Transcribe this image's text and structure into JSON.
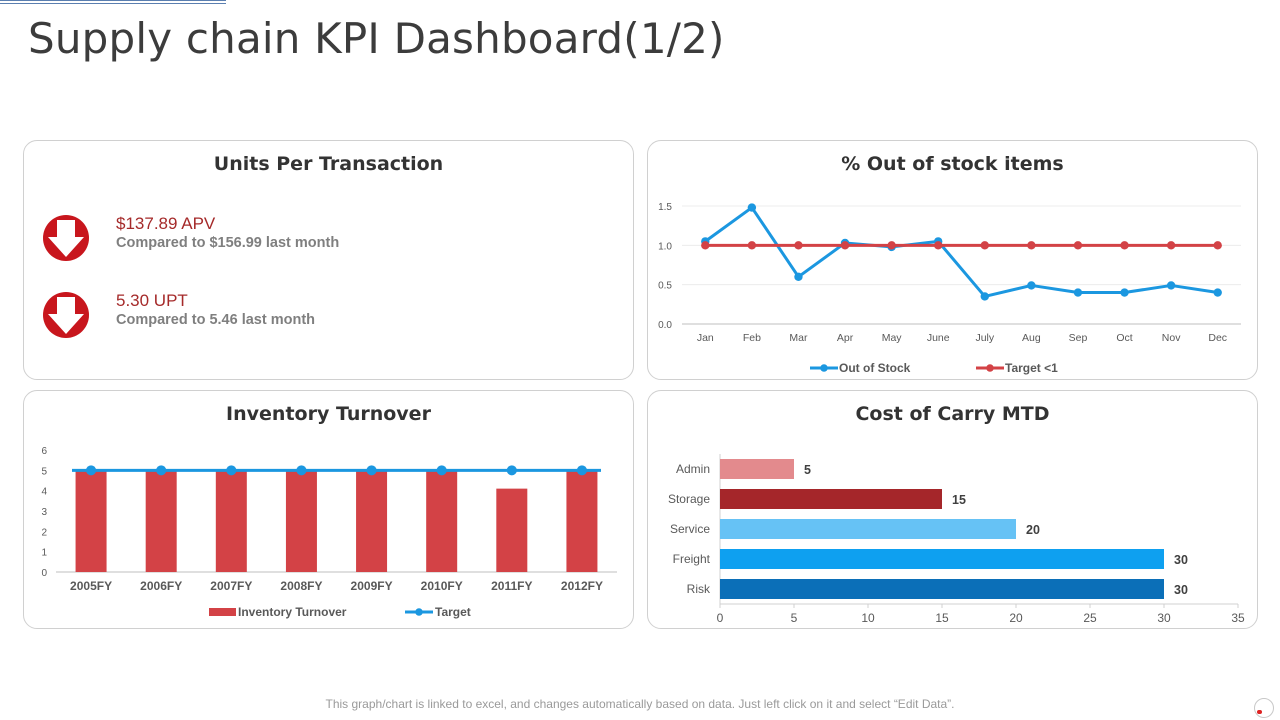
{
  "page": {
    "title": "Supply chain KPI Dashboard(1/2)",
    "footer_note": "This graph/chart is linked to excel, and changes automatically based on data. Just left click on it and select “Edit Data”."
  },
  "units_per_transaction": {
    "title": "Units Per Transaction",
    "kpis": [
      {
        "value": "$137.89 APV",
        "compare": "Compared to $156.99 last month",
        "icon": "down-arrow-icon"
      },
      {
        "value": "5.30 UPT",
        "compare": "Compared to 5.46 last month",
        "icon": "down-arrow-icon"
      }
    ]
  },
  "colors": {
    "red": "#d34246",
    "dark_red": "#a5262a",
    "pink": "#e38a8d",
    "blue": "#1b97e0",
    "light_blue": "#66c2f5",
    "mid_blue": "#0ea0f0",
    "deep_blue": "#0b6fb8",
    "grid": "#ececec",
    "axis_text": "#595959"
  },
  "chart_data": [
    {
      "id": "oos",
      "type": "line",
      "title": "% Out of stock items",
      "categories": [
        "Jan",
        "Feb",
        "Mar",
        "Apr",
        "May",
        "June",
        "July",
        "Aug",
        "Sep",
        "Oct",
        "Nov",
        "Dec"
      ],
      "series": [
        {
          "name": "Out of Stock",
          "values": [
            1.05,
            1.48,
            0.6,
            1.03,
            0.98,
            1.05,
            0.35,
            0.49,
            0.4,
            0.4,
            0.49,
            0.4
          ]
        },
        {
          "name": "Target <1",
          "values": [
            1,
            1,
            1,
            1,
            1,
            1,
            1,
            1,
            1,
            1,
            1,
            1
          ]
        }
      ],
      "yticks": [
        "0.0",
        "0.5",
        "1.0",
        "1.5"
      ],
      "ylim": [
        0,
        1.5
      ],
      "legend": "bottom"
    },
    {
      "id": "inv",
      "type": "bar",
      "title": "Inventory Turnover",
      "categories": [
        "2005FY",
        "2006FY",
        "2007FY",
        "2008FY",
        "2009FY",
        "2010FY",
        "2011FY",
        "2012FY"
      ],
      "series": [
        {
          "name": "Inventory Turnover",
          "values": [
            5,
            5,
            5,
            5,
            5,
            5,
            4.1,
            5
          ]
        },
        {
          "name": "Target",
          "values": [
            5,
            5,
            5,
            5,
            5,
            5,
            5,
            5
          ]
        }
      ],
      "yticks": [
        "0",
        "1",
        "2",
        "3",
        "4",
        "5",
        "6"
      ],
      "ylim": [
        0,
        6
      ],
      "legend": "bottom"
    },
    {
      "id": "coc",
      "type": "bar",
      "orientation": "horizontal",
      "title": "Cost of Carry MTD",
      "categories": [
        "Admin",
        "Storage",
        "Service",
        "Freight",
        "Risk"
      ],
      "values": [
        5,
        15,
        20,
        30,
        30
      ],
      "value_labels": [
        "5",
        "15",
        "20",
        "30",
        "30"
      ],
      "xticks": [
        "0",
        "5",
        "10",
        "15",
        "20",
        "25",
        "30",
        "35"
      ],
      "xlim": [
        0,
        35
      ]
    }
  ]
}
